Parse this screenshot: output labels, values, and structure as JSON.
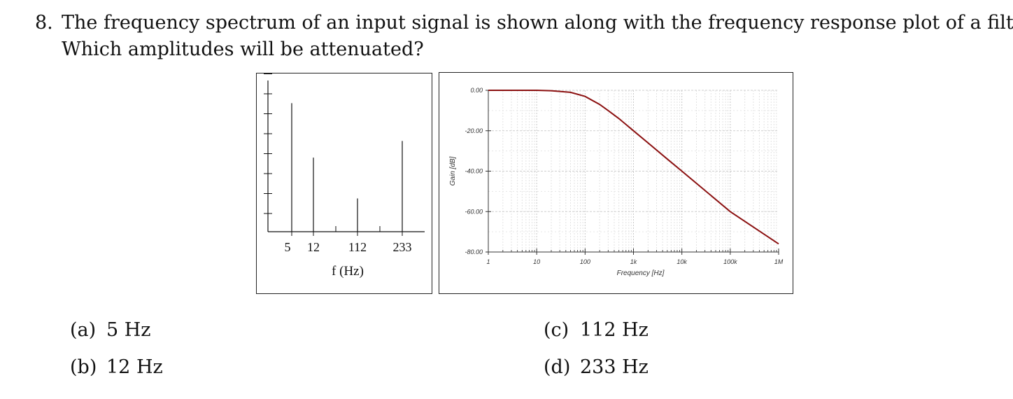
{
  "question": {
    "number": "8.",
    "line1": "The frequency spectrum of an input signal is shown along with the frequency response plot of a filter.",
    "line2": "Which amplitudes will be attenuated?"
  },
  "chart_data": [
    {
      "type": "bar",
      "categories": [
        "5",
        "12",
        "112",
        "233"
      ],
      "values": [
        0.85,
        0.49,
        0.22,
        0.6
      ],
      "xlabel": "f (Hz)",
      "ylabel": "",
      "ylim": [
        0,
        1
      ]
    },
    {
      "type": "line",
      "x_scale": "log",
      "xlabel": "Frequency [Hz]",
      "ylabel": "Gain [dB]",
      "xlim": [
        1,
        1000000
      ],
      "ylim": [
        -80,
        0
      ],
      "x_ticks": [
        "1",
        "10",
        "100",
        "1k",
        "10k",
        "100k",
        "1M"
      ],
      "y_ticks": [
        "0.00",
        "-20.00",
        "-40.00",
        "-60.00",
        "-80.00"
      ],
      "grid": true,
      "line_color": "#8b1010",
      "series": [
        {
          "x": [
            1,
            10,
            20,
            50,
            100,
            200,
            300,
            500,
            1000,
            2000,
            5000,
            10000,
            100000,
            1000000
          ],
          "y": [
            0,
            0,
            -0.2,
            -1,
            -3,
            -7,
            -10,
            -14,
            -20,
            -26,
            -34,
            -40,
            -60,
            -76
          ]
        }
      ]
    }
  ],
  "choices": [
    {
      "label": "(a)",
      "text": "5 Hz"
    },
    {
      "label": "(b)",
      "text": "12 Hz"
    },
    {
      "label": "(c)",
      "text": "112 Hz"
    },
    {
      "label": "(d)",
      "text": "233 Hz"
    }
  ]
}
